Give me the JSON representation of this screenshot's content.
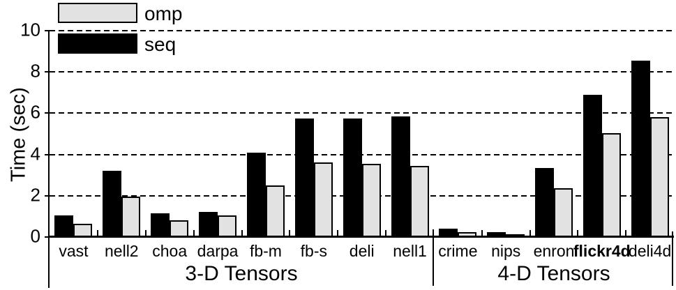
{
  "chart_data": {
    "type": "bar",
    "title": "",
    "ylabel": "Time (sec)",
    "ylim": [
      0,
      10
    ],
    "yticks": [
      0,
      2,
      4,
      6,
      8,
      10
    ],
    "grid": "horizontal dashed lines at 2,4,6,8,10",
    "legend": {
      "position": "top-left",
      "entries": [
        {
          "name": "omp",
          "color": "#e2e2e2"
        },
        {
          "name": "seq",
          "color": "#000000"
        }
      ]
    },
    "categories": [
      "vast",
      "nell2",
      "choa",
      "darpa",
      "fb-m",
      "fb-s",
      "deli",
      "nell1",
      "crime",
      "nips",
      "enron",
      "flickr4d",
      "deli4d"
    ],
    "emphasized_categories": [
      "flickr4d"
    ],
    "groups": [
      {
        "label": "3-D Tensors",
        "categories": [
          "vast",
          "nell2",
          "choa",
          "darpa",
          "fb-m",
          "fb-s",
          "deli",
          "nell1"
        ]
      },
      {
        "label": "4-D Tensors",
        "categories": [
          "crime",
          "nips",
          "enron",
          "flickr4d",
          "deli4d"
        ]
      }
    ],
    "series": [
      {
        "name": "seq",
        "color": "#000000",
        "values": [
          1.05,
          3.2,
          1.15,
          1.2,
          4.1,
          5.75,
          5.75,
          5.85,
          0.4,
          0.25,
          3.35,
          6.9,
          8.55
        ]
      },
      {
        "name": "omp",
        "color": "#e2e2e2",
        "values": [
          0.65,
          1.95,
          0.8,
          1.05,
          2.5,
          3.6,
          3.55,
          3.45,
          0.25,
          0.15,
          2.35,
          5.05,
          5.8
        ]
      }
    ]
  },
  "colors": {
    "background": "#ffffff",
    "axis": "#000000",
    "bar_seq": "#000000",
    "bar_omp": "#e2e2e2"
  }
}
